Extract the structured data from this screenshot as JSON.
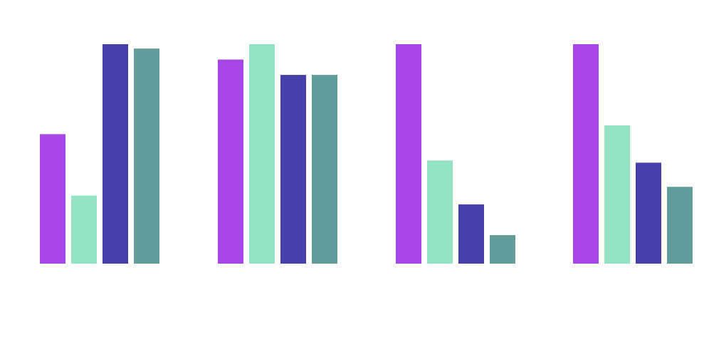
{
  "chart_data": {
    "type": "bar",
    "categories": [
      "",
      "",
      "",
      ""
    ],
    "series": [
      {
        "color": "#a847e8",
        "values": [
          0.59,
          0.93,
          1.0,
          1.0
        ]
      },
      {
        "color": "#93e3c4",
        "values": [
          0.31,
          1.0,
          0.47,
          0.63
        ]
      },
      {
        "color": "#453fa8",
        "values": [
          1.0,
          0.86,
          0.27,
          0.46
        ]
      },
      {
        "color": "#619c9b",
        "values": [
          0.98,
          0.86,
          0.13,
          0.35
        ]
      }
    ],
    "ylim": [
      0,
      1
    ],
    "grid": false,
    "legend": "none",
    "title": "",
    "xlabel": "",
    "ylabel": ""
  }
}
